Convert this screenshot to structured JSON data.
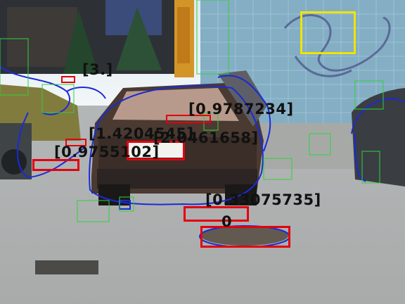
{
  "annotations": {
    "colors": {
      "detection_box": "#e3000f",
      "highlight_box": "#f0e400",
      "contour": "#1a2bd6",
      "grid": "#2fd23a"
    },
    "labels": {
      "l1": "[3.]",
      "l2": "[0.9787234]",
      "l3": "[1.4204545]",
      "l4": "[2.0461658]",
      "l5": "[0.9755102]",
      "l6": "[0.33075735]",
      "l7": "0"
    }
  }
}
